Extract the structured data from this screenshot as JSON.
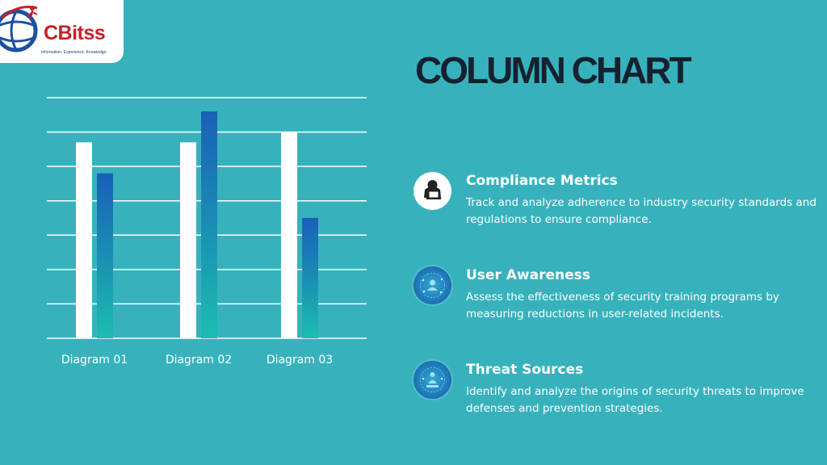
{
  "logo": {
    "name": "CBitss",
    "tagline": "Information, Experience, Knowledge."
  },
  "title": "COLUMN CHART",
  "colors": {
    "background": "#37b2bd",
    "bar_white": "#ffffff",
    "bar_gradient_top": "#1a5fb8",
    "bar_gradient_bottom": "#1bbdb0",
    "title": "#15212f"
  },
  "chart_data": {
    "type": "bar",
    "categories": [
      "Diagram 01",
      "Diagram 02",
      "Diagram 03"
    ],
    "series": [
      {
        "values": [
          5.7,
          5.7,
          6.0
        ]
      },
      {
        "values": [
          4.8,
          6.6,
          3.5
        ]
      }
    ],
    "ylim": [
      0,
      7
    ],
    "grid": true,
    "title": "",
    "xlabel": "",
    "ylabel": ""
  },
  "items": [
    {
      "title": "Compliance Metrics",
      "description": "Track and analyze adherence to industry security standards and regulations to ensure compliance.",
      "icon": "hacker-laptop-icon"
    },
    {
      "title": "User Awareness",
      "description": "Assess the effectiveness of security training programs by measuring reductions in user-related incidents.",
      "icon": "network-user-icon"
    },
    {
      "title": "Threat Sources",
      "description": "Identify and analyze the origins of security threats to improve defenses and prevention strategies.",
      "icon": "threat-network-icon"
    }
  ]
}
